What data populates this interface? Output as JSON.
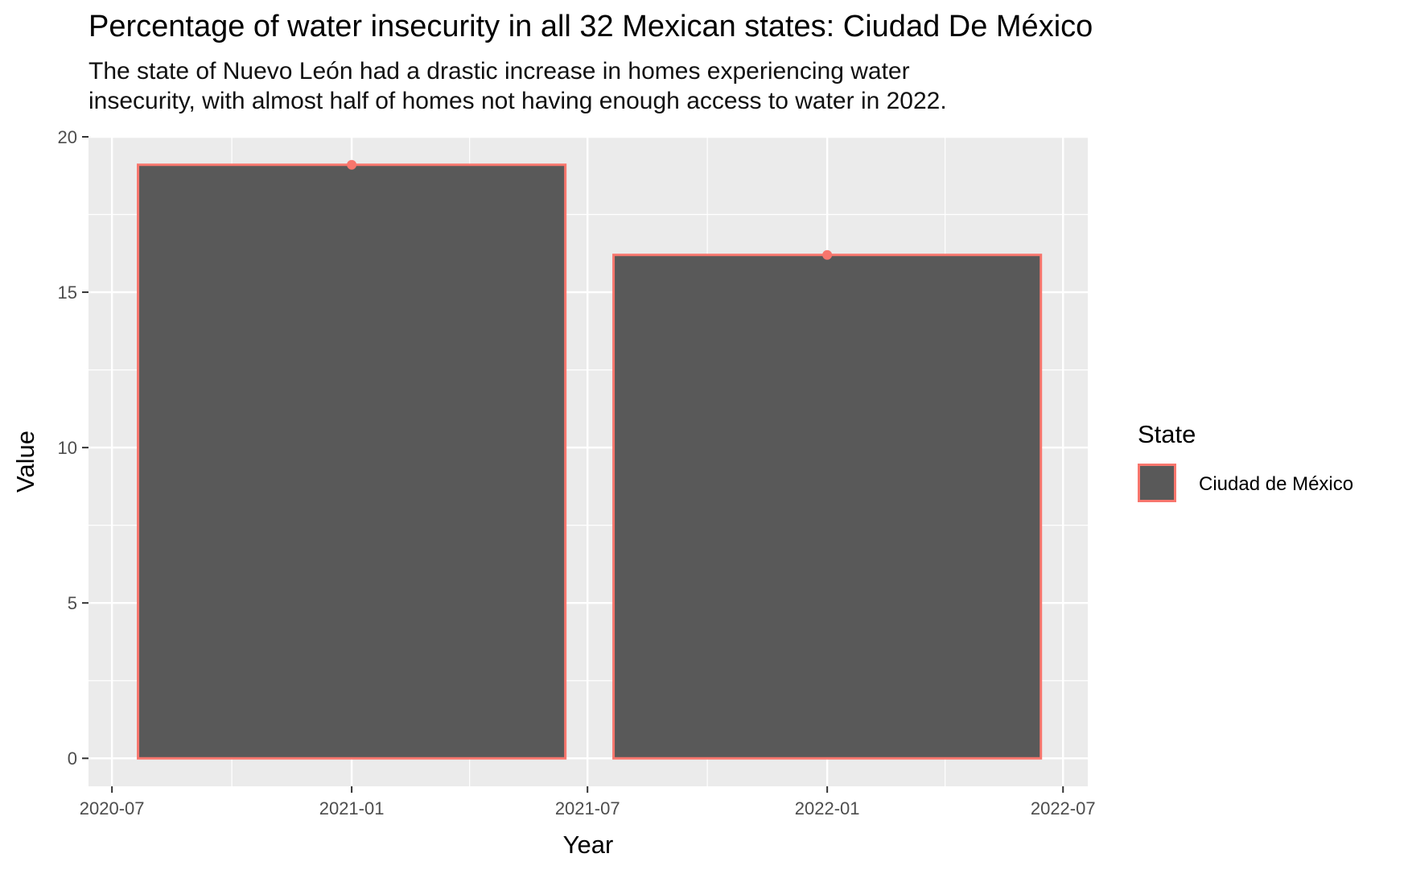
{
  "title": "Percentage of water insecurity in all 32 Mexican states: Ciudad De México",
  "subtitle": [
    "The state of Nuevo León had a drastic increase in homes experiencing water",
    "insecurity, with almost half of homes not having enough access to water in 2022."
  ],
  "chart_data": {
    "type": "bar",
    "x": [
      "2021-01",
      "2022-01"
    ],
    "series": [
      {
        "name": "Ciudad de México",
        "values": [
          19.1,
          16.2
        ]
      }
    ],
    "point_markers": true,
    "xlabel": "Year",
    "ylabel": "Value",
    "ylim": [
      -0.9,
      20
    ],
    "yticks": [
      0,
      5,
      10,
      15,
      20
    ],
    "xlim": [
      "2020-06-13",
      "2022-07-20"
    ],
    "xticks": [
      "2020-07",
      "2021-01",
      "2021-07",
      "2022-01",
      "2022-07"
    ],
    "bar_width_days": 328,
    "grid": true,
    "legend": {
      "title": "State",
      "position": "right"
    },
    "colors": {
      "fill": "#595959",
      "outline": "#f8766d",
      "panel": "#ebebeb",
      "grid": "#ffffff"
    }
  }
}
